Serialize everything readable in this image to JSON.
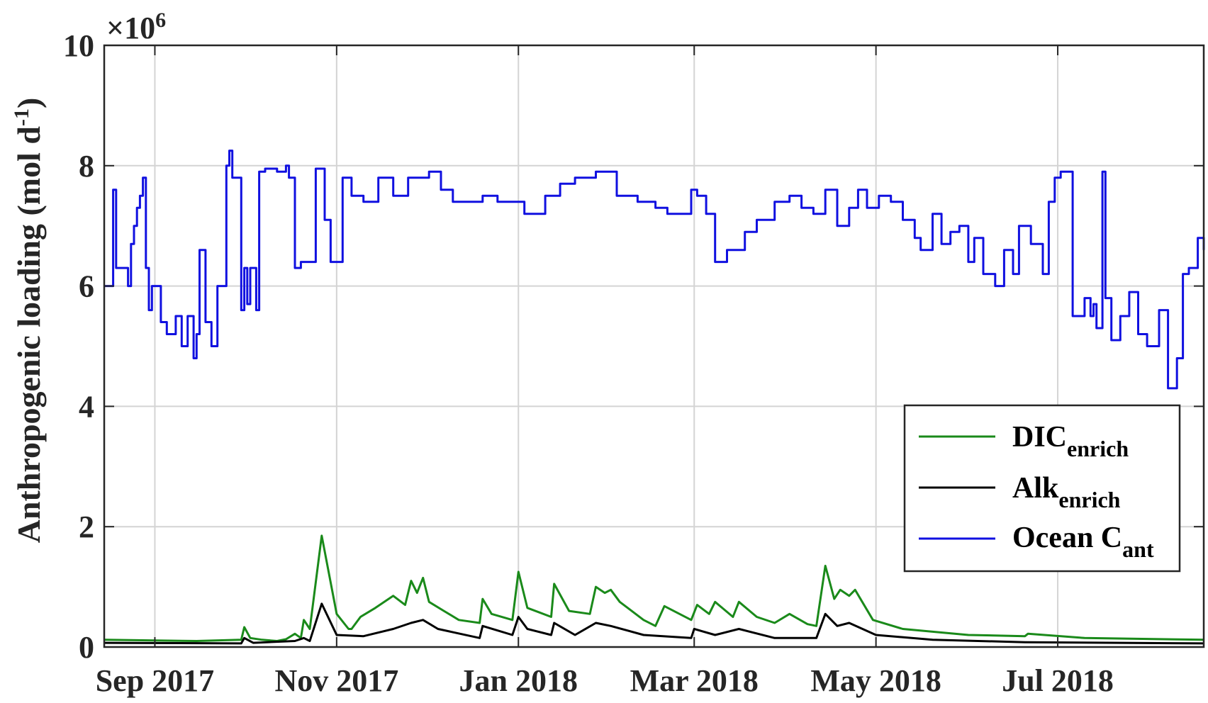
{
  "chart_data": {
    "type": "line",
    "title": "",
    "xlabel": "",
    "ylabel": "Anthropogenic loading (mol d",
    "ylabel_sup": "-1",
    "ylabel_end": ")",
    "y_exponent_prefix": "×10",
    "y_exponent_value": "6",
    "ylim": [
      0,
      10
    ],
    "y_ticks": [
      0,
      2,
      4,
      6,
      8,
      10
    ],
    "y_tick_labels": [
      "0",
      "2",
      "4",
      "6",
      "8",
      "10"
    ],
    "xlim": [
      "2017-08-15",
      "2018-08-19"
    ],
    "x_ticks": [
      "2017-09-01",
      "2017-11-01",
      "2018-01-01",
      "2018-03-01",
      "2018-05-01",
      "2018-07-01"
    ],
    "x_tick_labels": [
      "Sep 2017",
      "Nov 2017",
      "Jan 2018",
      "Mar 2018",
      "May 2018",
      "Jul 2018"
    ],
    "grid": true,
    "legend_position": "lower-right",
    "series": [
      {
        "name": "DIC",
        "name_sub": "enrich",
        "color": "#1a8a1a",
        "style": "line",
        "x": [
          "2017-08-15",
          "2017-09-15",
          "2017-09-30",
          "2017-10-01",
          "2017-10-03",
          "2017-10-07",
          "2017-10-12",
          "2017-10-15",
          "2017-10-18",
          "2017-10-20",
          "2017-10-21",
          "2017-10-23",
          "2017-10-27",
          "2017-11-01",
          "2017-11-05",
          "2017-11-06",
          "2017-11-09",
          "2017-11-14",
          "2017-11-20",
          "2017-11-24",
          "2017-11-26",
          "2017-11-28",
          "2017-11-30",
          "2017-12-02",
          "2017-12-07",
          "2017-12-12",
          "2017-12-19",
          "2017-12-20",
          "2017-12-23",
          "2017-12-30",
          "2018-01-01",
          "2018-01-04",
          "2018-01-12",
          "2018-01-13",
          "2018-01-18",
          "2018-01-25",
          "2018-01-27",
          "2018-01-30",
          "2018-02-01",
          "2018-02-04",
          "2018-02-12",
          "2018-02-16",
          "2018-02-19",
          "2018-02-28",
          "2018-03-02",
          "2018-03-06",
          "2018-03-08",
          "2018-03-14",
          "2018-03-16",
          "2018-03-22",
          "2018-03-28",
          "2018-04-02",
          "2018-04-08",
          "2018-04-11",
          "2018-04-14",
          "2018-04-17",
          "2018-04-19",
          "2018-04-22",
          "2018-04-24",
          "2018-04-30",
          "2018-05-10",
          "2018-06-01",
          "2018-06-20",
          "2018-06-21",
          "2018-07-10",
          "2018-08-19"
        ],
        "y": [
          0.12,
          0.1,
          0.12,
          0.33,
          0.15,
          0.12,
          0.1,
          0.13,
          0.22,
          0.15,
          0.45,
          0.3,
          1.85,
          0.55,
          0.3,
          0.3,
          0.5,
          0.65,
          0.85,
          0.7,
          1.1,
          0.9,
          1.15,
          0.75,
          0.6,
          0.45,
          0.4,
          0.8,
          0.55,
          0.45,
          1.25,
          0.65,
          0.5,
          1.05,
          0.6,
          0.55,
          1.0,
          0.9,
          0.95,
          0.75,
          0.45,
          0.35,
          0.68,
          0.45,
          0.7,
          0.55,
          0.75,
          0.5,
          0.75,
          0.5,
          0.4,
          0.55,
          0.38,
          0.35,
          1.35,
          0.8,
          0.95,
          0.85,
          0.95,
          0.45,
          0.3,
          0.2,
          0.18,
          0.22,
          0.15,
          0.12
        ]
      },
      {
        "name": "Alk",
        "name_sub": "enrich",
        "color": "#000000",
        "style": "line",
        "x": [
          "2017-08-15",
          "2017-09-30",
          "2017-10-01",
          "2017-10-04",
          "2017-10-18",
          "2017-10-21",
          "2017-10-23",
          "2017-10-27",
          "2017-11-01",
          "2017-11-10",
          "2017-11-20",
          "2017-11-26",
          "2017-11-30",
          "2017-12-05",
          "2017-12-19",
          "2017-12-20",
          "2017-12-30",
          "2018-01-01",
          "2018-01-04",
          "2018-01-12",
          "2018-01-13",
          "2018-01-20",
          "2018-01-27",
          "2018-02-01",
          "2018-02-12",
          "2018-02-28",
          "2018-03-01",
          "2018-03-08",
          "2018-03-16",
          "2018-03-28",
          "2018-04-11",
          "2018-04-14",
          "2018-04-18",
          "2018-04-22",
          "2018-05-01",
          "2018-05-20",
          "2018-06-20",
          "2018-08-19"
        ],
        "y": [
          0.07,
          0.06,
          0.15,
          0.07,
          0.1,
          0.15,
          0.1,
          0.72,
          0.2,
          0.18,
          0.3,
          0.4,
          0.45,
          0.3,
          0.15,
          0.35,
          0.2,
          0.5,
          0.3,
          0.2,
          0.4,
          0.2,
          0.4,
          0.35,
          0.2,
          0.15,
          0.3,
          0.2,
          0.3,
          0.15,
          0.15,
          0.55,
          0.35,
          0.4,
          0.2,
          0.12,
          0.08,
          0.06
        ]
      },
      {
        "name": "Ocean C",
        "name_sub": "ant",
        "color": "#1010e0",
        "style": "step",
        "x": [
          "2017-08-15",
          "2017-08-18",
          "2017-08-19",
          "2017-08-20",
          "2017-08-23",
          "2017-08-24",
          "2017-08-25",
          "2017-08-26",
          "2017-08-27",
          "2017-08-28",
          "2017-08-29",
          "2017-08-30",
          "2017-08-31",
          "2017-09-01",
          "2017-09-03",
          "2017-09-05",
          "2017-09-08",
          "2017-09-10",
          "2017-09-12",
          "2017-09-14",
          "2017-09-15",
          "2017-09-16",
          "2017-09-18",
          "2017-09-20",
          "2017-09-22",
          "2017-09-23",
          "2017-09-24",
          "2017-09-25",
          "2017-09-26",
          "2017-09-27",
          "2017-09-30",
          "2017-10-01",
          "2017-10-02",
          "2017-10-03",
          "2017-10-05",
          "2017-10-06",
          "2017-10-08",
          "2017-10-10",
          "2017-10-12",
          "2017-10-15",
          "2017-10-16",
          "2017-10-18",
          "2017-10-20",
          "2017-10-22",
          "2017-10-25",
          "2017-10-28",
          "2017-10-30",
          "2017-11-03",
          "2017-11-06",
          "2017-11-10",
          "2017-11-15",
          "2017-11-20",
          "2017-11-25",
          "2017-11-28",
          "2017-12-02",
          "2017-12-06",
          "2017-12-10",
          "2017-12-15",
          "2017-12-20",
          "2017-12-25",
          "2018-01-03",
          "2018-01-10",
          "2018-01-15",
          "2018-01-20",
          "2018-01-27",
          "2018-02-03",
          "2018-02-10",
          "2018-02-16",
          "2018-02-20",
          "2018-02-25",
          "2018-02-28",
          "2018-03-02",
          "2018-03-05",
          "2018-03-08",
          "2018-03-12",
          "2018-03-18",
          "2018-03-22",
          "2018-03-28",
          "2018-04-02",
          "2018-04-06",
          "2018-04-10",
          "2018-04-14",
          "2018-04-18",
          "2018-04-22",
          "2018-04-25",
          "2018-04-28",
          "2018-05-02",
          "2018-05-06",
          "2018-05-10",
          "2018-05-14",
          "2018-05-16",
          "2018-05-20",
          "2018-05-23",
          "2018-05-26",
          "2018-05-29",
          "2018-06-01",
          "2018-06-03",
          "2018-06-06",
          "2018-06-10",
          "2018-06-13",
          "2018-06-16",
          "2018-06-18",
          "2018-06-22",
          "2018-06-26",
          "2018-06-28",
          "2018-06-30",
          "2018-07-02",
          "2018-07-06",
          "2018-07-10",
          "2018-07-12",
          "2018-07-13",
          "2018-07-14",
          "2018-07-16",
          "2018-07-17",
          "2018-07-19",
          "2018-07-22",
          "2018-07-25",
          "2018-07-28",
          "2018-07-31",
          "2018-08-04",
          "2018-08-07",
          "2018-08-10",
          "2018-08-12",
          "2018-08-14",
          "2018-08-17",
          "2018-08-19"
        ],
        "y": [
          6.0,
          7.6,
          6.3,
          6.3,
          6.0,
          6.7,
          7.0,
          7.3,
          7.5,
          7.8,
          6.3,
          5.6,
          6.0,
          6.0,
          5.4,
          5.2,
          5.5,
          5.0,
          5.5,
          4.8,
          5.2,
          6.6,
          5.4,
          5.0,
          6.0,
          6.0,
          6.0,
          8.0,
          8.25,
          7.8,
          5.6,
          6.3,
          5.7,
          6.3,
          5.6,
          7.9,
          7.95,
          7.95,
          7.9,
          8.0,
          7.8,
          6.3,
          6.4,
          6.4,
          7.95,
          7.1,
          6.4,
          7.8,
          7.5,
          7.4,
          7.8,
          7.5,
          7.8,
          7.8,
          7.9,
          7.6,
          7.4,
          7.4,
          7.5,
          7.4,
          7.2,
          7.5,
          7.7,
          7.8,
          7.9,
          7.5,
          7.4,
          7.3,
          7.2,
          7.2,
          7.6,
          7.5,
          7.2,
          6.4,
          6.6,
          6.9,
          7.1,
          7.4,
          7.5,
          7.3,
          7.2,
          7.6,
          7.0,
          7.3,
          7.6,
          7.3,
          7.5,
          7.4,
          7.1,
          6.8,
          6.6,
          7.2,
          6.7,
          6.9,
          7.0,
          6.4,
          6.8,
          6.2,
          6.0,
          6.6,
          6.2,
          7.0,
          6.7,
          6.2,
          7.4,
          7.8,
          7.9,
          5.5,
          5.8,
          5.5,
          5.7,
          5.3,
          7.9,
          5.8,
          5.1,
          5.5,
          5.9,
          5.2,
          5.0,
          5.6,
          4.3,
          4.8,
          6.2,
          6.3,
          6.8,
          6.6
        ]
      }
    ]
  }
}
